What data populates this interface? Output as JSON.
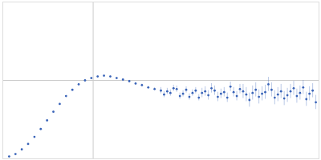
{
  "chart_data": {
    "type": "scatter",
    "color": "#3a64b8",
    "marker": "circle",
    "grid": true,
    "tick_labels": false,
    "xlim": [
      0,
      0.35
    ],
    "ylim": [
      0,
      2
    ],
    "xticks": [
      0.1
    ],
    "yticks": [
      1
    ],
    "x": [
      0.007,
      0.014,
      0.021,
      0.028,
      0.035,
      0.042,
      0.049,
      0.056,
      0.063,
      0.07,
      0.077,
      0.084,
      0.091,
      0.098,
      0.105,
      0.112,
      0.119,
      0.126,
      0.133,
      0.14,
      0.147,
      0.154,
      0.161,
      0.168,
      0.175,
      0.1785,
      0.182,
      0.1855,
      0.189,
      0.1925,
      0.196,
      0.1995,
      0.203,
      0.2065,
      0.21,
      0.2135,
      0.217,
      0.2205,
      0.224,
      0.2275,
      0.231,
      0.2345,
      0.238,
      0.2415,
      0.245,
      0.2485,
      0.252,
      0.2555,
      0.259,
      0.2625,
      0.266,
      0.2695,
      0.273,
      0.2765,
      0.28,
      0.2835,
      0.287,
      0.2905,
      0.294,
      0.2975,
      0.301,
      0.3045,
      0.308,
      0.3115,
      0.315,
      0.3185,
      0.322,
      0.3255,
      0.329,
      0.3325,
      0.336,
      0.3395,
      0.343,
      0.3465
    ],
    "values": [
      0.03,
      0.06,
      0.12,
      0.19,
      0.28,
      0.38,
      0.49,
      0.6,
      0.7,
      0.8,
      0.88,
      0.95,
      1.0,
      1.03,
      1.05,
      1.06,
      1.05,
      1.03,
      1.01,
      0.99,
      0.96,
      0.94,
      0.91,
      0.89,
      0.87,
      0.82,
      0.86,
      0.84,
      0.9,
      0.89,
      0.8,
      0.83,
      0.88,
      0.79,
      0.84,
      0.87,
      0.78,
      0.84,
      0.86,
      0.81,
      0.9,
      0.87,
      0.79,
      0.83,
      0.85,
      0.78,
      0.92,
      0.85,
      0.8,
      0.89,
      0.86,
      0.82,
      0.75,
      0.84,
      0.88,
      0.79,
      0.83,
      0.85,
      0.95,
      0.88,
      0.78,
      0.82,
      0.86,
      0.77,
      0.81,
      0.86,
      0.9,
      0.8,
      0.84,
      0.91,
      0.76,
      0.83,
      0.87,
      0.72
    ],
    "errors": [
      0.003,
      0.003,
      0.004,
      0.004,
      0.005,
      0.005,
      0.005,
      0.006,
      0.006,
      0.007,
      0.007,
      0.008,
      0.008,
      0.009,
      0.009,
      0.01,
      0.01,
      0.011,
      0.012,
      0.013,
      0.014,
      0.015,
      0.016,
      0.018,
      0.04,
      0.04,
      0.04,
      0.04,
      0.04,
      0.04,
      0.04,
      0.04,
      0.04,
      0.04,
      0.04,
      0.04,
      0.04,
      0.06,
      0.06,
      0.06,
      0.06,
      0.06,
      0.06,
      0.06,
      0.06,
      0.06,
      0.06,
      0.06,
      0.06,
      0.06,
      0.09,
      0.09,
      0.09,
      0.09,
      0.09,
      0.09,
      0.09,
      0.09,
      0.09,
      0.09,
      0.09,
      0.09,
      0.09,
      0.09,
      0.09,
      0.09,
      0.09,
      0.09,
      0.09,
      0.09,
      0.09,
      0.09,
      0.09,
      0.09
    ]
  }
}
